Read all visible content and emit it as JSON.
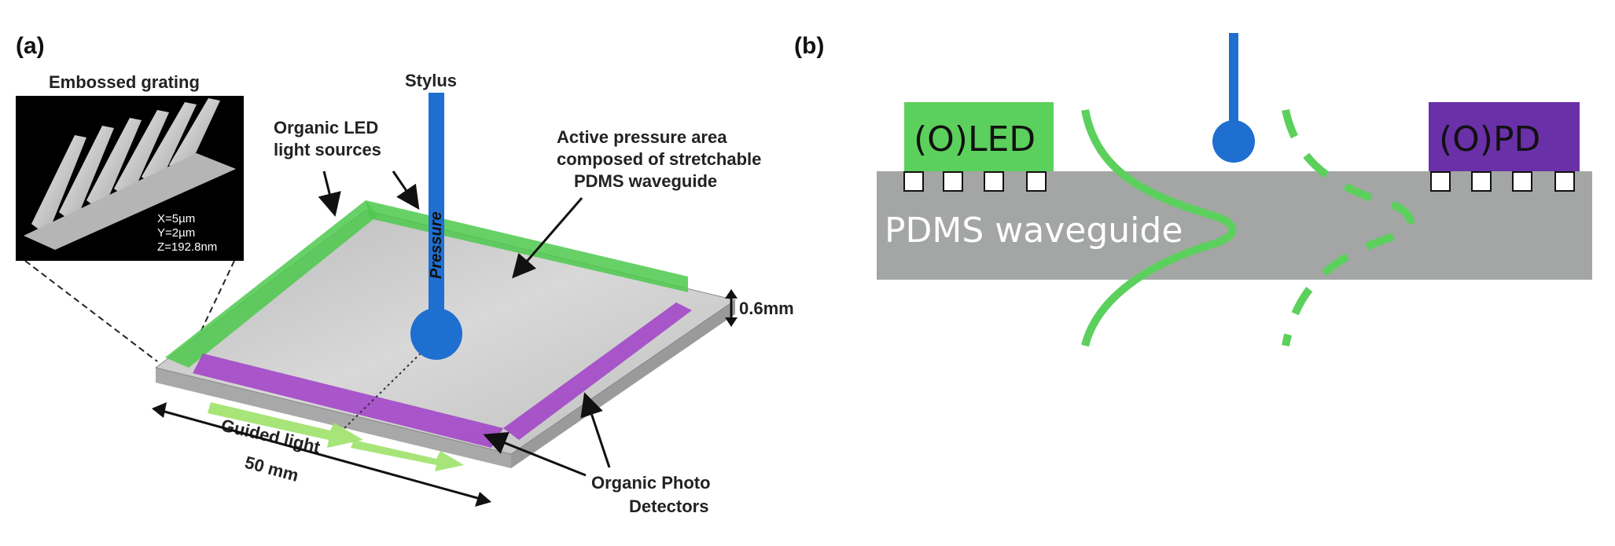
{
  "panel_a": {
    "label": "(a)",
    "inset_title": "Embossed grating",
    "inset_params": [
      "X=5µm",
      "Y=2µm",
      "Z=192.8nm"
    ],
    "stylus": "Stylus",
    "pressure": "Pressure",
    "oled_sources": [
      "Organic LED",
      "light sources"
    ],
    "active_area": [
      "Active pressure area",
      "composed of stretchable",
      "PDMS waveguide"
    ],
    "thickness": "0.6mm",
    "guided_light": "Guided light",
    "width": "50 mm",
    "photo_detectors": [
      "Organic Photo",
      "Detectors"
    ],
    "colors": {
      "led": "#4cc94c",
      "pd": "#a040c8",
      "stylus": "#1f6fd0",
      "substrate": "#c8c8c8"
    }
  },
  "panel_b": {
    "label": "(b)",
    "led": "(O)LED",
    "pd": "(O)PD",
    "waveguide": "PDMS waveguide",
    "colors": {
      "led": "#5cd05c",
      "pd": "#6a30a8",
      "waveguide": "#a3a6a4",
      "light": "#5cd05c",
      "stylus": "#1f6fd0"
    }
  }
}
